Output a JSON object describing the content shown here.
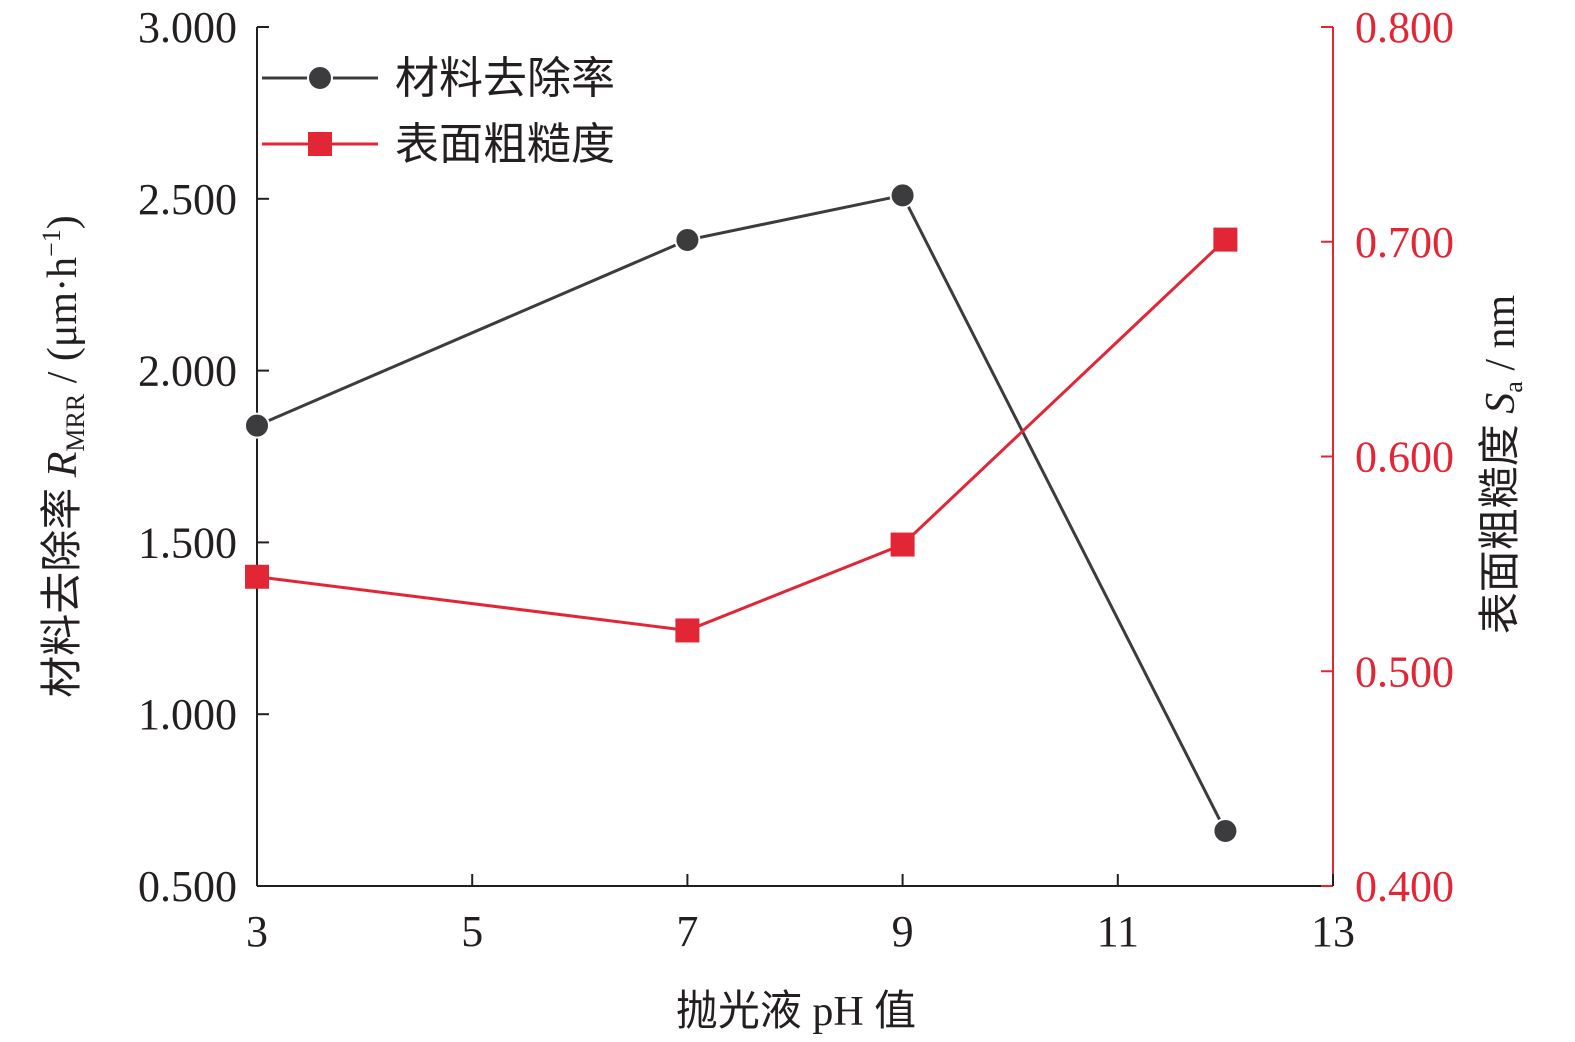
{
  "chart_data": {
    "type": "line",
    "x": [
      3,
      7,
      9,
      12
    ],
    "xlabel": "抛光液 pH 值",
    "xlim": [
      3,
      13
    ],
    "xticks": [
      "3",
      "5",
      "7",
      "9",
      "11",
      "13"
    ],
    "ylabel_left": {
      "prefix": "材料去除率 ",
      "var": "R",
      "sub": "MRR",
      "unit_pre": " / (μm·h",
      "sup": "−1",
      "unit_post": ")"
    },
    "ylim_left": [
      0.5,
      3.0
    ],
    "yticks_left": [
      "0.500",
      "1.000",
      "1.500",
      "2.000",
      "2.500",
      "3.000"
    ],
    "ylabel_right": {
      "prefix": "表面粗糙度 ",
      "var": "S",
      "sub": "a",
      "unit": " / nm"
    },
    "ylim_right": [
      0.4,
      0.8
    ],
    "yticks_right": [
      "0.400",
      "0.500",
      "0.600",
      "0.700",
      "0.800"
    ],
    "series": [
      {
        "name": "材料去除率",
        "axis": "left",
        "marker": "circle",
        "color": "#3c3c3e",
        "values": [
          1.84,
          2.38,
          2.51,
          0.66
        ]
      },
      {
        "name": "表面粗糙度",
        "axis": "right",
        "marker": "square",
        "color": "#e32636",
        "values": [
          0.544,
          0.519,
          0.559,
          0.701
        ]
      }
    ],
    "legend": "top-left",
    "grid": false,
    "colors": {
      "left_axis": "#231f20",
      "right_axis": "#e32636"
    }
  }
}
